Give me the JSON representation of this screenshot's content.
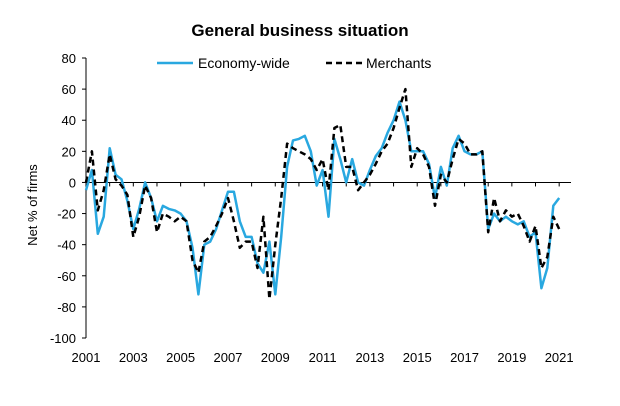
{
  "chart_data": {
    "type": "line",
    "title": "General business situation",
    "xlabel": "",
    "ylabel": "Net % of firms",
    "ylim": [
      -100,
      80
    ],
    "y_ticks": [
      "80",
      "60",
      "40",
      "20",
      "0",
      "-20",
      "-40",
      "-60",
      "-80",
      "-100"
    ],
    "x_ticks": [
      "2001",
      "2003",
      "2005",
      "2007",
      "2009",
      "2011",
      "2013",
      "2015",
      "2017",
      "2019",
      "2021"
    ],
    "grid": false,
    "legend_position": "top",
    "series": [
      {
        "name": "Economy-wide",
        "color": "#29a8e0",
        "style": "solid",
        "x": [
          2001.0,
          2001.25,
          2001.5,
          2001.75,
          2002.0,
          2002.25,
          2002.5,
          2002.75,
          2003.0,
          2003.25,
          2003.5,
          2003.75,
          2004.0,
          2004.25,
          2004.5,
          2004.75,
          2005.0,
          2005.25,
          2005.5,
          2005.75,
          2006.0,
          2006.25,
          2006.5,
          2006.75,
          2007.0,
          2007.25,
          2007.5,
          2007.75,
          2008.0,
          2008.25,
          2008.5,
          2008.75,
          2009.0,
          2009.25,
          2009.5,
          2009.75,
          2010.0,
          2010.25,
          2010.5,
          2010.75,
          2011.0,
          2011.25,
          2011.5,
          2011.75,
          2012.0,
          2012.25,
          2012.5,
          2012.75,
          2013.0,
          2013.25,
          2013.5,
          2013.75,
          2014.0,
          2014.25,
          2014.5,
          2014.75,
          2015.0,
          2015.25,
          2015.5,
          2015.75,
          2016.0,
          2016.25,
          2016.5,
          2016.75,
          2017.0,
          2017.25,
          2017.5,
          2017.75,
          2018.0,
          2018.25,
          2018.5,
          2018.75,
          2019.0,
          2019.25,
          2019.5,
          2019.75,
          2020.0,
          2020.25,
          2020.5,
          2020.75,
          2021.0
        ],
        "values": [
          -5,
          8,
          -33,
          -22,
          22,
          5,
          2,
          -12,
          -30,
          -17,
          0,
          -10,
          -25,
          -15,
          -17,
          -18,
          -20,
          -25,
          -42,
          -72,
          -40,
          -38,
          -30,
          -18,
          -6,
          -6,
          -25,
          -35,
          -35,
          -52,
          -58,
          -38,
          -72,
          -35,
          10,
          27,
          28,
          30,
          20,
          -2,
          8,
          -22,
          28,
          15,
          0,
          15,
          0,
          -2,
          8,
          17,
          22,
          32,
          40,
          52,
          40,
          20,
          20,
          20,
          12,
          -10,
          10,
          -2,
          22,
          30,
          20,
          18,
          18,
          20,
          -30,
          -20,
          -25,
          -22,
          -25,
          -27,
          -25,
          -35,
          -32,
          -68,
          -55,
          -15,
          -10
        ]
      },
      {
        "name": "Merchants",
        "color": "#000000",
        "style": "dashed",
        "x": [
          2001.0,
          2001.25,
          2001.5,
          2001.75,
          2002.0,
          2002.25,
          2002.5,
          2002.75,
          2003.0,
          2003.25,
          2003.5,
          2003.75,
          2004.0,
          2004.25,
          2004.5,
          2004.75,
          2005.0,
          2005.25,
          2005.5,
          2005.75,
          2006.0,
          2006.25,
          2006.5,
          2006.75,
          2007.0,
          2007.25,
          2007.5,
          2007.75,
          2008.0,
          2008.25,
          2008.5,
          2008.75,
          2009.0,
          2009.25,
          2009.5,
          2009.75,
          2010.0,
          2010.25,
          2010.5,
          2010.75,
          2011.0,
          2011.25,
          2011.5,
          2011.75,
          2012.0,
          2012.25,
          2012.5,
          2012.75,
          2013.0,
          2013.25,
          2013.5,
          2013.75,
          2014.0,
          2014.25,
          2014.5,
          2014.75,
          2015.0,
          2015.25,
          2015.5,
          2015.75,
          2016.0,
          2016.25,
          2016.5,
          2016.75,
          2017.0,
          2017.25,
          2017.5,
          2017.75,
          2018.0,
          2018.25,
          2018.5,
          2018.75,
          2019.0,
          2019.25,
          2019.5,
          2019.75,
          2020.0,
          2020.25,
          2020.5,
          2020.75,
          2021.0
        ],
        "values": [
          0,
          20,
          -18,
          -5,
          18,
          2,
          -2,
          -8,
          -35,
          -22,
          -2,
          -10,
          -32,
          -20,
          -22,
          -25,
          -22,
          -25,
          -50,
          -58,
          -38,
          -35,
          -28,
          -20,
          -10,
          -25,
          -42,
          -38,
          -38,
          -55,
          -22,
          -75,
          -40,
          -10,
          25,
          22,
          20,
          18,
          15,
          8,
          15,
          -5,
          35,
          37,
          10,
          10,
          -5,
          0,
          5,
          12,
          20,
          25,
          35,
          48,
          60,
          10,
          22,
          18,
          10,
          -15,
          5,
          0,
          15,
          28,
          25,
          18,
          18,
          20,
          -32,
          -10,
          -25,
          -18,
          -22,
          -20,
          -28,
          -38,
          -28,
          -55,
          -48,
          -22,
          -30
        ]
      }
    ]
  }
}
